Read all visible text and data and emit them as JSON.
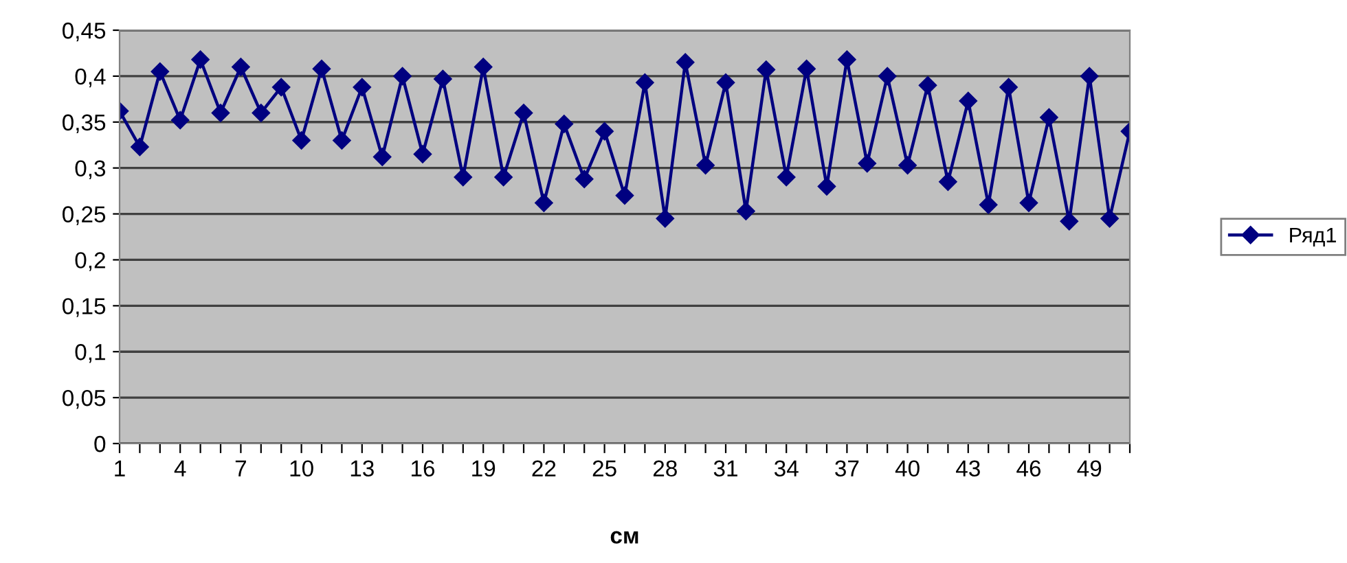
{
  "chart_data": {
    "type": "line",
    "xlabel": "см",
    "categories": [
      "1",
      null,
      null,
      "4",
      null,
      null,
      "7",
      null,
      null,
      "10",
      null,
      null,
      "13",
      null,
      null,
      "16",
      null,
      null,
      "19",
      null,
      null,
      "22",
      null,
      null,
      "25",
      null,
      null,
      "28",
      null,
      null,
      "31",
      null,
      null,
      "34",
      null,
      null,
      "37",
      null,
      null,
      "40",
      null,
      null,
      "43",
      null,
      null,
      "46",
      null,
      null,
      "49",
      null,
      null
    ],
    "series": [
      {
        "name": "Ряд1",
        "color": "#000080",
        "values": [
          0.362,
          0.323,
          0.405,
          0.352,
          0.418,
          0.36,
          0.41,
          0.36,
          0.388,
          0.33,
          0.408,
          0.33,
          0.388,
          0.312,
          0.4,
          0.315,
          0.397,
          0.29,
          0.41,
          0.29,
          0.36,
          0.262,
          0.348,
          0.288,
          0.34,
          0.27,
          0.393,
          0.245,
          0.415,
          0.303,
          0.393,
          0.253,
          0.407,
          0.29,
          0.408,
          0.28,
          0.418,
          0.305,
          0.4,
          0.303,
          0.39,
          0.285,
          0.373,
          0.26,
          0.388,
          0.262,
          0.355,
          0.242,
          0.4,
          0.245,
          0.34
        ]
      }
    ],
    "ylim": [
      0,
      0.45
    ],
    "yticks": [
      0,
      {
        "value": 0.05,
        "label": "0,05"
      },
      {
        "value": 0.1,
        "label": "0,1"
      },
      {
        "value": 0.15,
        "label": "0,15"
      },
      {
        "value": 0.2,
        "label": "0,2"
      },
      {
        "value": 0.25,
        "label": "0,25"
      },
      {
        "value": 0.3,
        "label": "0,3"
      },
      {
        "value": 0.35,
        "label": "0,35"
      },
      {
        "value": 0.4,
        "label": "0,4"
      },
      {
        "value": 0.45,
        "label": "0,45"
      }
    ],
    "grid": "y",
    "legend": "right",
    "marker": "diamond",
    "line_style": "solid"
  }
}
